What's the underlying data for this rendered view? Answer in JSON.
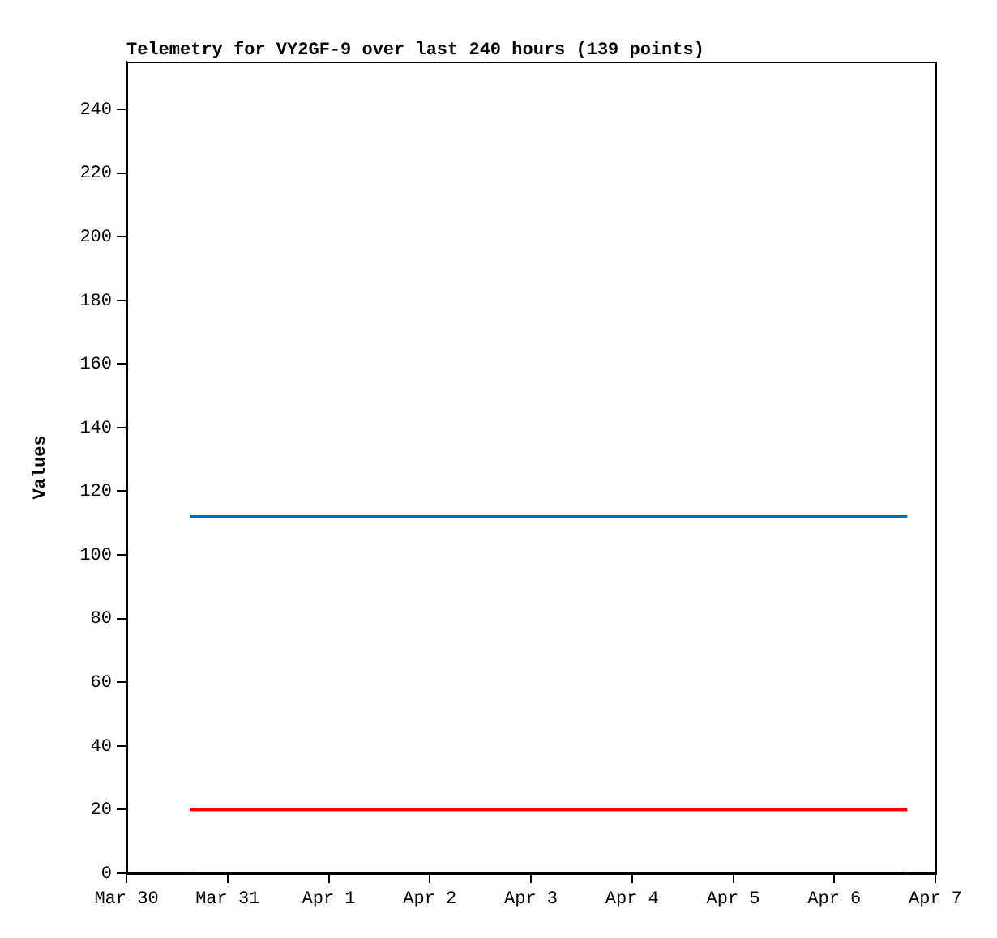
{
  "chart_data": {
    "type": "line",
    "title": "Telemetry for VY2GF-9 over last 240 hours (139 points)",
    "ylabel": "Values",
    "series": [
      {
        "color": "#0066cc",
        "x": [
          "--03-30T15:00",
          "--04-06T17:20"
        ],
        "values": [
          112,
          112
        ]
      },
      {
        "color": "#ff0000",
        "x": [
          "--03-30T15:00",
          "--04-06T17:20"
        ],
        "values": [
          20,
          20
        ]
      },
      {
        "color": "#000000",
        "x": [
          "--03-30T15:00",
          "--04-06T17:20"
        ],
        "values": [
          0,
          0
        ]
      }
    ],
    "xlim": [
      "--03-30",
      "--04-07"
    ],
    "xticks": [
      {
        "value": "--03-30",
        "label": "Mar 30"
      },
      {
        "value": "--03-31",
        "label": "Mar 31"
      },
      {
        "value": "--04-01",
        "label": "Apr 1"
      },
      {
        "value": "--04-02",
        "label": "Apr 2"
      },
      {
        "value": "--04-03",
        "label": "Apr 3"
      },
      {
        "value": "--04-04",
        "label": "Apr 4"
      },
      {
        "value": "--04-05",
        "label": "Apr 5"
      },
      {
        "value": "--04-06",
        "label": "Apr 6"
      },
      {
        "value": "--04-07",
        "label": "Apr 7"
      }
    ],
    "ylim": [
      0,
      255
    ],
    "yticks": [
      0,
      20,
      40,
      60,
      80,
      100,
      120,
      140,
      160,
      180,
      200,
      220,
      240
    ],
    "grid": false,
    "legend": false,
    "marker": "none",
    "line_style": "solid"
  }
}
